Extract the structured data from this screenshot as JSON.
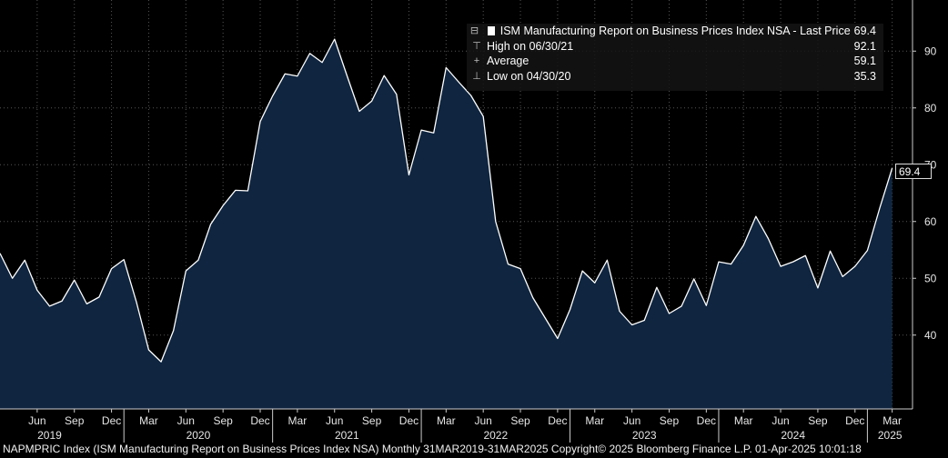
{
  "chart_data": {
    "type": "area",
    "title": "ISM Manufacturing Report on Business Prices Index NSA",
    "series": [
      {
        "name": "ISM Manufacturing Report on Business Prices Index NSA",
        "start": "2019-03",
        "values": [
          54.4,
          50.0,
          53.2,
          47.9,
          45.1,
          46.0,
          49.7,
          45.5,
          46.7,
          51.7,
          53.3,
          45.9,
          37.4,
          35.3,
          40.8,
          51.3,
          53.2,
          59.5,
          62.8,
          65.5,
          65.4,
          77.6,
          82.1,
          86.0,
          85.6,
          89.6,
          88.0,
          92.1,
          85.7,
          79.4,
          81.2,
          85.7,
          82.4,
          68.2,
          76.1,
          75.6,
          87.1,
          84.6,
          82.2,
          78.5,
          60.0,
          52.5,
          51.7,
          46.6,
          43.0,
          39.4,
          44.5,
          51.3,
          49.2,
          53.2,
          44.2,
          41.8,
          42.6,
          48.4,
          43.8,
          45.1,
          49.9,
          45.2,
          52.9,
          52.5,
          55.8,
          60.9,
          57.0,
          52.1,
          52.9,
          54.0,
          48.3,
          54.8,
          50.3,
          52.1,
          54.9,
          62.4,
          69.4
        ]
      }
    ],
    "ylim": [
      27,
      99
    ],
    "yticks": [
      "40",
      "50",
      "60",
      "70",
      "80",
      "90"
    ],
    "xtick_labels": [
      "Jun",
      "Sep",
      "Dec",
      "Mar",
      "Jun",
      "Sep",
      "Dec",
      "Mar",
      "Jun",
      "Sep",
      "Dec",
      "Mar",
      "Jun",
      "Sep",
      "Dec",
      "Mar",
      "Jun",
      "Sep",
      "Dec",
      "Mar",
      "Jun",
      "Sep",
      "Dec",
      "Mar"
    ],
    "year_labels": [
      "2019",
      "2020",
      "2021",
      "2022",
      "2023",
      "2024",
      "2025"
    ],
    "last_value_label": "69.4",
    "legend": {
      "title": "ISM Manufacturing Report on Business Prices Index NSA - Last Price",
      "last_price": "69.4",
      "rows": [
        {
          "label": "High on 06/30/21",
          "value": "92.1",
          "icon": "high-marker-icon",
          "glyph": "⊤"
        },
        {
          "label": "Average",
          "value": "59.1",
          "icon": "average-marker-icon",
          "glyph": "+"
        },
        {
          "label": "Low on 04/30/20",
          "value": "35.3",
          "icon": "low-marker-icon",
          "glyph": "⊥"
        }
      ]
    },
    "colors": {
      "fill": "#0f2540",
      "line": "#ffffff",
      "grid": "#555555",
      "background": "#000000"
    }
  },
  "footer": {
    "text": "NAPMPRIC Index (ISM Manufacturing Report on Business Prices Index NSA)  Monthly 31MAR2019-31MAR2025  Copyright© 2025 Bloomberg Finance L.P.  01-Apr-2025 10:01:18"
  }
}
